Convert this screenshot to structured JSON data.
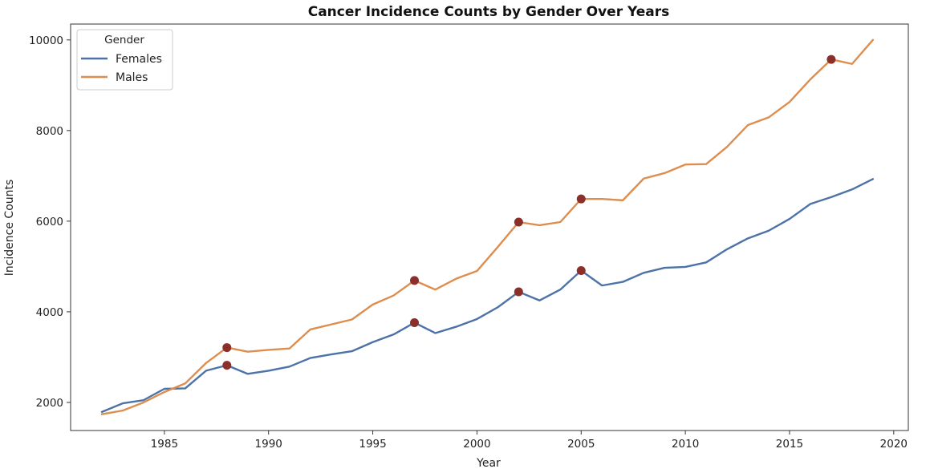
{
  "chart_data": {
    "type": "line",
    "title": "Cancer Incidence Counts by Gender Over Years",
    "xlabel": "Year",
    "ylabel": "Incidence Counts",
    "xlim": [
      1980.5,
      2020.7
    ],
    "ylim": [
      1380,
      10350
    ],
    "xticks": [
      1985,
      1990,
      1995,
      2000,
      2005,
      2010,
      2015,
      2020
    ],
    "yticks": [
      2000,
      4000,
      6000,
      8000,
      10000
    ],
    "grid": false,
    "legend": {
      "title": "Gender",
      "position": "top-left"
    },
    "x": [
      1982,
      1983,
      1984,
      1985,
      1986,
      1987,
      1988,
      1989,
      1990,
      1991,
      1992,
      1993,
      1994,
      1995,
      1996,
      1997,
      1998,
      1999,
      2000,
      2001,
      2002,
      2003,
      2004,
      2005,
      2006,
      2007,
      2008,
      2009,
      2010,
      2011,
      2012,
      2013,
      2014,
      2015,
      2016,
      2017,
      2018,
      2019
    ],
    "series": [
      {
        "name": "Females",
        "color": "#4c72a8",
        "values": [
          1790,
          1980,
          2050,
          2300,
          2310,
          2700,
          2820,
          2630,
          2700,
          2790,
          2980,
          3060,
          3130,
          3330,
          3500,
          3760,
          3530,
          3670,
          3840,
          4100,
          4440,
          4250,
          4490,
          4910,
          4580,
          4660,
          4860,
          4970,
          4990,
          5090,
          5380,
          5620,
          5790,
          6050,
          6380,
          6530,
          6700,
          6930
        ],
        "highlight_indices": [
          6,
          15,
          20,
          23
        ]
      },
      {
        "name": "Males",
        "color": "#dd8e4f",
        "values": [
          1740,
          1820,
          2000,
          2230,
          2420,
          2870,
          3210,
          3120,
          3160,
          3190,
          3610,
          3720,
          3830,
          4160,
          4360,
          4690,
          4490,
          4730,
          4900,
          5430,
          5980,
          5910,
          5980,
          6490,
          6490,
          6460,
          6940,
          7060,
          7250,
          7260,
          7640,
          8120,
          8290,
          8630,
          9130,
          9570,
          9470,
          10000
        ],
        "highlight_indices": [
          6,
          15,
          20,
          23,
          35
        ]
      }
    ],
    "highlight_color": "#8b2f2b"
  }
}
